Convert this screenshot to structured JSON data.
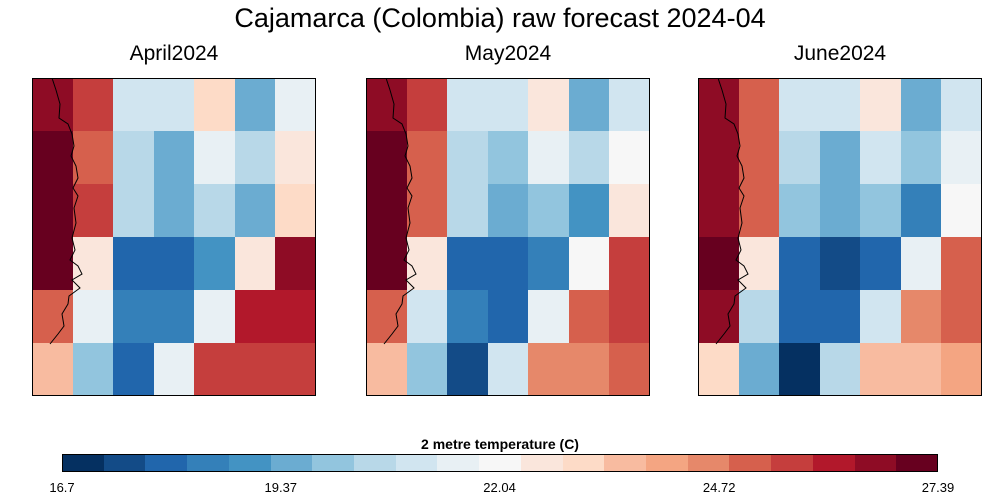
{
  "main_title": "Cajamarca (Colombia) raw forecast 2024-04",
  "colorbar": {
    "label": "2 metre temperature (C)",
    "ticks": [
      "16.7",
      "19.37",
      "22.04",
      "24.72",
      "27.39"
    ],
    "colors": [
      "#053061",
      "#134b87",
      "#2166ac",
      "#3480b9",
      "#4393c3",
      "#6bacd1",
      "#92c5de",
      "#b8d8e8",
      "#d1e5f0",
      "#e8f0f4",
      "#f7f7f7",
      "#fae6dc",
      "#fddbc7",
      "#f8bba0",
      "#f4a582",
      "#e6886a",
      "#d6604d",
      "#c53e3d",
      "#b2182b",
      "#8e0c25",
      "#67001f"
    ]
  },
  "chart_data": [
    {
      "type": "heatmap",
      "title": "April2024",
      "grid": [
        [
          19,
          17,
          8,
          8,
          12,
          5,
          9
        ],
        [
          20,
          16,
          7,
          5,
          9,
          7,
          11
        ],
        [
          20,
          17,
          7,
          5,
          7,
          5,
          12
        ],
        [
          20,
          11,
          2,
          2,
          4,
          11,
          19
        ],
        [
          16,
          9,
          3,
          3,
          9,
          18,
          18
        ],
        [
          13,
          6,
          2,
          9,
          17,
          17,
          17
        ]
      ]
    },
    {
      "type": "heatmap",
      "title": "May2024",
      "grid": [
        [
          19,
          17,
          8,
          8,
          11,
          5,
          8
        ],
        [
          20,
          16,
          7,
          6,
          9,
          7,
          10
        ],
        [
          20,
          16,
          7,
          5,
          6,
          4,
          11
        ],
        [
          20,
          11,
          2,
          2,
          3,
          10,
          17
        ],
        [
          16,
          8,
          3,
          2,
          9,
          16,
          17
        ],
        [
          13,
          6,
          1,
          8,
          15,
          15,
          16
        ]
      ]
    },
    {
      "type": "heatmap",
      "title": "June2024",
      "grid": [
        [
          19,
          16,
          8,
          8,
          11,
          5,
          8
        ],
        [
          19,
          16,
          7,
          5,
          8,
          6,
          9
        ],
        [
          19,
          16,
          6,
          5,
          6,
          3,
          10
        ],
        [
          20,
          11,
          2,
          1,
          2,
          9,
          16
        ],
        [
          19,
          7,
          2,
          2,
          8,
          15,
          16
        ],
        [
          12,
          5,
          0,
          7,
          13,
          13,
          14
        ]
      ]
    }
  ]
}
